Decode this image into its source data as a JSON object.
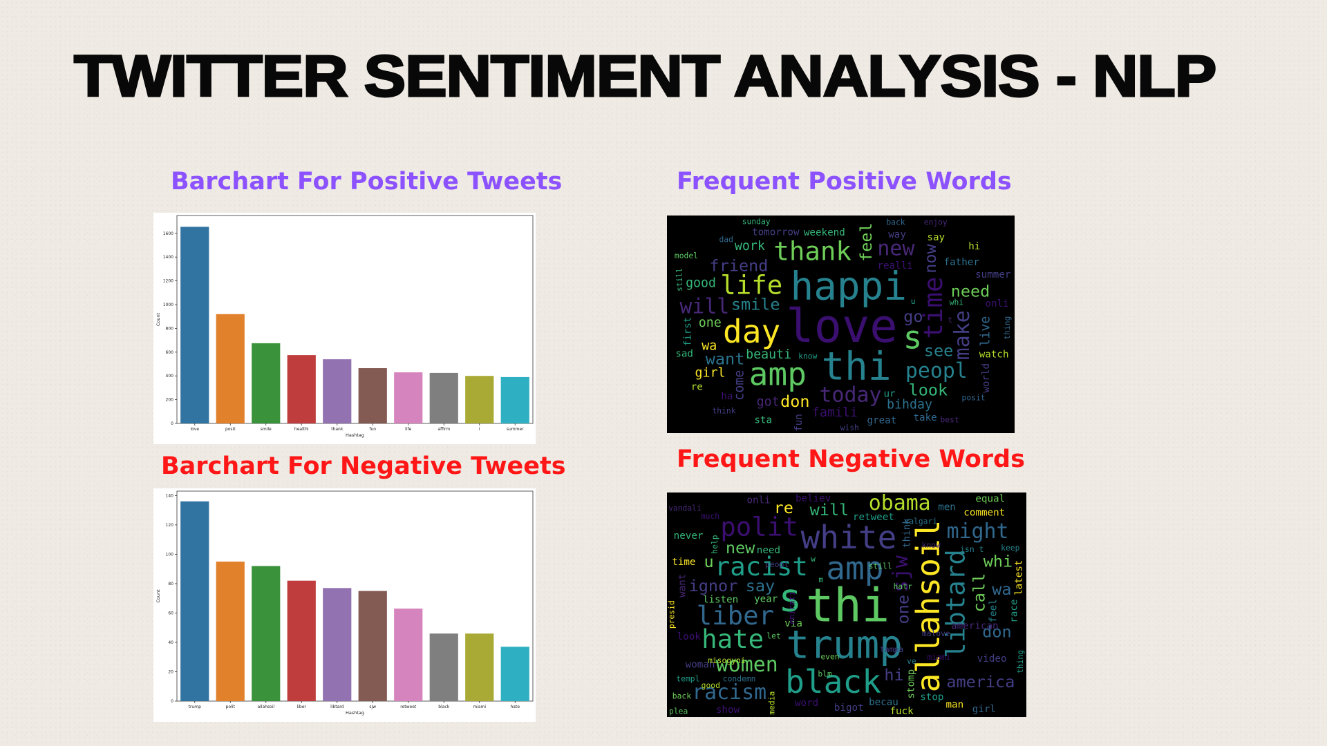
{
  "page": {
    "title": "TWITTER SENTIMENT ANALYSIS - NLP",
    "headings": {
      "pos_bar": "Barchart For Positive Tweets",
      "neg_bar": "Barchart For Negative Tweets",
      "pos_cloud": "Frequent Positive Words",
      "neg_cloud": "Frequent Negative  Words"
    },
    "colors": {
      "heading_positive": "#8c52ff",
      "heading_negative": "#ff1616",
      "title": "#080808"
    }
  },
  "chart_data": [
    {
      "type": "bar",
      "categories": [
        "love",
        "posit",
        "smile",
        "healthi",
        "thank",
        "fun",
        "life",
        "affirm",
        "i",
        "summer"
      ],
      "values": [
        1655,
        920,
        675,
        575,
        540,
        465,
        430,
        425,
        400,
        390
      ],
      "xlabel": "Hashtag",
      "ylabel": "Count",
      "ylim": [
        0,
        1750
      ],
      "yticks": [
        0,
        200,
        400,
        600,
        800,
        1000,
        1200,
        1400,
        1600
      ],
      "colors": [
        "#3274a1",
        "#e1812c",
        "#3a923a",
        "#c03d3e",
        "#9372b2",
        "#845b53",
        "#d684bd",
        "#7f7f7f",
        "#a9aa35",
        "#2fb0c2"
      ],
      "grid": false
    },
    {
      "type": "bar",
      "categories": [
        "trump",
        "polit",
        "allahsoil",
        "liber",
        "libtard",
        "sjw",
        "retweet",
        "black",
        "miami",
        "hate"
      ],
      "values": [
        136,
        95,
        92,
        82,
        77,
        75,
        63,
        46,
        46,
        37
      ],
      "xlabel": "Hashtag",
      "ylabel": "Count",
      "ylim": [
        0,
        143
      ],
      "yticks": [
        0,
        20,
        40,
        60,
        80,
        100,
        120,
        140
      ],
      "colors": [
        "#3274a1",
        "#e1812c",
        "#3a923a",
        "#c03d3e",
        "#9372b2",
        "#845b53",
        "#d684bd",
        "#7f7f7f",
        "#a9aa35",
        "#2fb0c2"
      ],
      "grid": false
    }
  ],
  "wordclouds": {
    "positive": {
      "background": "#000000",
      "words": [
        {
          "text": "love",
          "weight": 10
        },
        {
          "text": "happi",
          "weight": 9
        },
        {
          "text": "thi",
          "weight": 9
        },
        {
          "text": "s",
          "weight": 8
        },
        {
          "text": "day",
          "weight": 8
        },
        {
          "text": "amp",
          "weight": 8
        },
        {
          "text": "life",
          "weight": 7
        },
        {
          "text": "thank",
          "weight": 7
        },
        {
          "text": "time",
          "weight": 7
        },
        {
          "text": "today",
          "weight": 6
        },
        {
          "text": "peopl",
          "weight": 6
        },
        {
          "text": "new",
          "weight": 6
        },
        {
          "text": "will",
          "weight": 6
        },
        {
          "text": "make",
          "weight": 6
        },
        {
          "text": "smile",
          "weight": 5
        },
        {
          "text": "friend",
          "weight": 5
        },
        {
          "text": "want",
          "weight": 5
        },
        {
          "text": "look",
          "weight": 5
        },
        {
          "text": "feel",
          "weight": 5
        },
        {
          "text": "don",
          "weight": 5
        },
        {
          "text": "see",
          "weight": 5
        },
        {
          "text": "go",
          "weight": 5
        },
        {
          "text": "need",
          "weight": 5
        },
        {
          "text": "now",
          "weight": 5
        },
        {
          "text": "famili",
          "weight": 4
        },
        {
          "text": "bihday",
          "weight": 4
        },
        {
          "text": "beauti",
          "weight": 4
        },
        {
          "text": "one",
          "weight": 4
        },
        {
          "text": "live",
          "weight": 4
        },
        {
          "text": "got",
          "weight": 4
        },
        {
          "text": "girl",
          "weight": 4
        },
        {
          "text": "wa",
          "weight": 4
        },
        {
          "text": "good",
          "weight": 4
        },
        {
          "text": "come",
          "weight": 4
        },
        {
          "text": "work",
          "weight": 4
        },
        {
          "text": "weekend",
          "weight": 3
        },
        {
          "text": "father",
          "weight": 3
        },
        {
          "text": "way",
          "weight": 3
        },
        {
          "text": "first",
          "weight": 3
        },
        {
          "text": "onli",
          "weight": 3
        },
        {
          "text": "great",
          "weight": 3
        },
        {
          "text": "tomorrow",
          "weight": 3
        },
        {
          "text": "watch",
          "weight": 3
        },
        {
          "text": "fun",
          "weight": 3
        },
        {
          "text": "sad",
          "weight": 3
        },
        {
          "text": "say",
          "weight": 3
        },
        {
          "text": "summer",
          "weight": 3
        },
        {
          "text": "realli",
          "weight": 3
        },
        {
          "text": "world",
          "weight": 3
        },
        {
          "text": "take",
          "weight": 3
        },
        {
          "text": "sta",
          "weight": 3
        },
        {
          "text": "ha",
          "weight": 3
        },
        {
          "text": "hi",
          "weight": 3
        },
        {
          "text": "re",
          "weight": 3
        },
        {
          "text": "ur",
          "weight": 3
        },
        {
          "text": "posit",
          "weight": 2
        },
        {
          "text": "think",
          "weight": 2
        },
        {
          "text": "know",
          "weight": 2
        },
        {
          "text": "thing",
          "weight": 2
        },
        {
          "text": "wish",
          "weight": 2
        },
        {
          "text": "model",
          "weight": 2
        },
        {
          "text": "back",
          "weight": 2
        },
        {
          "text": "dad",
          "weight": 2
        },
        {
          "text": "still",
          "weight": 2
        },
        {
          "text": "sunday",
          "weight": 2
        },
        {
          "text": "enjoy",
          "weight": 2
        },
        {
          "text": "best",
          "weight": 2
        },
        {
          "text": "whi",
          "weight": 2
        },
        {
          "text": "u",
          "weight": 2
        },
        {
          "text": "t",
          "weight": 2
        }
      ]
    },
    "negative": {
      "background": "#000000",
      "words": [
        {
          "text": "thi",
          "weight": 10
        },
        {
          "text": "trump",
          "weight": 9
        },
        {
          "text": "s",
          "weight": 9
        },
        {
          "text": "allahsoil",
          "weight": 8
        },
        {
          "text": "amp",
          "weight": 8
        },
        {
          "text": "white",
          "weight": 8
        },
        {
          "text": "black",
          "weight": 8
        },
        {
          "text": "liber",
          "weight": 7
        },
        {
          "text": "libtard",
          "weight": 7
        },
        {
          "text": "racist",
          "weight": 7
        },
        {
          "text": "hate",
          "weight": 7
        },
        {
          "text": "polit",
          "weight": 7
        },
        {
          "text": "women",
          "weight": 6
        },
        {
          "text": "sjw",
          "weight": 6
        },
        {
          "text": "obama",
          "weight": 6
        },
        {
          "text": "might",
          "weight": 6
        },
        {
          "text": "racism",
          "weight": 6
        },
        {
          "text": "america",
          "weight": 5
        },
        {
          "text": "call",
          "weight": 5
        },
        {
          "text": "ignor",
          "weight": 5
        },
        {
          "text": "say",
          "weight": 5
        },
        {
          "text": "new",
          "weight": 5
        },
        {
          "text": "will",
          "weight": 5
        },
        {
          "text": "one",
          "weight": 5
        },
        {
          "text": "don",
          "weight": 5
        },
        {
          "text": "wa",
          "weight": 5
        },
        {
          "text": "whi",
          "weight": 5
        },
        {
          "text": "hi",
          "weight": 5
        },
        {
          "text": "re",
          "weight": 5
        },
        {
          "text": "u",
          "weight": 5
        },
        {
          "text": "listen",
          "weight": 3
        },
        {
          "text": "retweet",
          "weight": 3
        },
        {
          "text": "video",
          "weight": 3
        },
        {
          "text": "stomp",
          "weight": 3
        },
        {
          "text": "becau",
          "weight": 3
        },
        {
          "text": "year",
          "weight": 3
        },
        {
          "text": "never",
          "weight": 3
        },
        {
          "text": "woman",
          "weight": 3
        },
        {
          "text": "feel",
          "weight": 3
        },
        {
          "text": "word",
          "weight": 3
        },
        {
          "text": "look",
          "weight": 3
        },
        {
          "text": "via",
          "weight": 3
        },
        {
          "text": "stop",
          "weight": 3
        },
        {
          "text": "race",
          "weight": 3
        },
        {
          "text": "time",
          "weight": 3
        },
        {
          "text": "bigot",
          "weight": 3
        },
        {
          "text": "onli",
          "weight": 3
        },
        {
          "text": "comment",
          "weight": 3
        },
        {
          "text": "want",
          "weight": 3
        },
        {
          "text": "men",
          "weight": 3
        },
        {
          "text": "need",
          "weight": 3
        },
        {
          "text": "girl",
          "weight": 3
        },
        {
          "text": "man",
          "weight": 3
        },
        {
          "text": "think",
          "weight": 3
        },
        {
          "text": "show",
          "weight": 3
        },
        {
          "text": "equal",
          "weight": 3
        },
        {
          "text": "fuck",
          "weight": 3
        },
        {
          "text": "believ",
          "weight": 3
        },
        {
          "text": "latest",
          "weight": 3
        },
        {
          "text": "american",
          "weight": 3
        },
        {
          "text": "templ",
          "weight": 2
        },
        {
          "text": "vandali",
          "weight": 2
        },
        {
          "text": "condemn",
          "weight": 2
        },
        {
          "text": "emirati",
          "weight": 2
        },
        {
          "text": "miami",
          "weight": 2
        },
        {
          "text": "tampa",
          "weight": 2
        },
        {
          "text": "misogyni",
          "weight": 2
        },
        {
          "text": "calgari",
          "weight": 2
        },
        {
          "text": "presid",
          "weight": 2
        },
        {
          "text": "peopl",
          "weight": 2
        },
        {
          "text": "malove",
          "weight": 2
        },
        {
          "text": "still",
          "weight": 2
        },
        {
          "text": "keep",
          "weight": 2
        },
        {
          "text": "help",
          "weight": 2
        },
        {
          "text": "hatr",
          "weight": 2
        },
        {
          "text": "back",
          "weight": 2
        },
        {
          "text": "isn t",
          "weight": 2
        },
        {
          "text": "let",
          "weight": 2
        },
        {
          "text": "media",
          "weight": 2
        },
        {
          "text": "much",
          "weight": 2
        },
        {
          "text": "plea",
          "weight": 2
        },
        {
          "text": "good",
          "weight": 2
        },
        {
          "text": "know",
          "weight": 2
        },
        {
          "text": "thing",
          "weight": 2
        },
        {
          "text": "even",
          "weight": 2
        },
        {
          "text": "blm",
          "weight": 2
        },
        {
          "text": "ve",
          "weight": 2
        },
        {
          "text": "m",
          "weight": 2
        },
        {
          "text": "w",
          "weight": 2
        }
      ]
    }
  }
}
